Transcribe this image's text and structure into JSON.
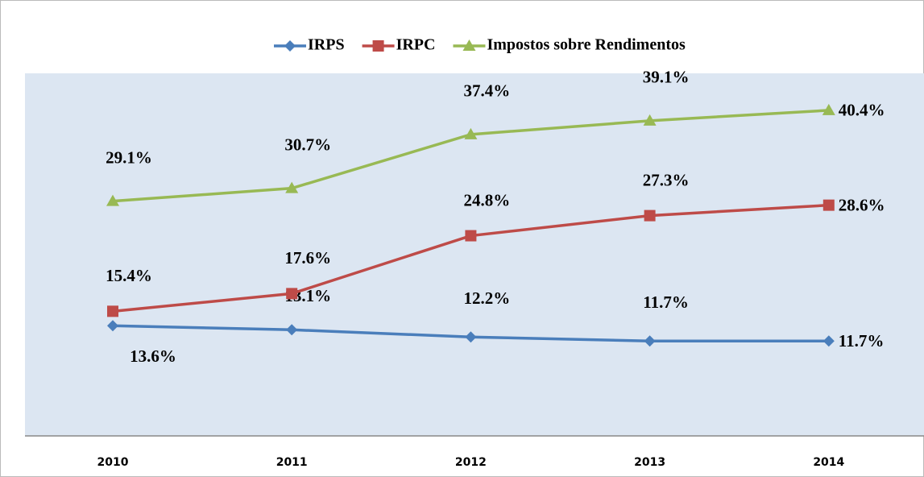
{
  "chart_data": {
    "type": "line",
    "categories": [
      "2010",
      "2011",
      "2012",
      "2013",
      "2014"
    ],
    "series": [
      {
        "name": "IRPS",
        "color": "#4a7ebb",
        "marker": "diamond",
        "values": [
          13.6,
          13.1,
          12.2,
          11.7,
          11.7
        ],
        "value_labels": [
          "13.6%",
          "13.1%",
          "12.2%",
          "11.7%",
          "11.7%"
        ]
      },
      {
        "name": "IRPC",
        "color": "#be4b48",
        "marker": "square",
        "values": [
          15.4,
          17.6,
          24.8,
          27.3,
          28.6
        ],
        "value_labels": [
          "15.4%",
          "17.6%",
          "24.8%",
          "27.3%",
          "28.6%"
        ]
      },
      {
        "name": "Impostos sobre Rendimentos",
        "color": "#98b954",
        "marker": "triangle",
        "values": [
          29.1,
          30.7,
          37.4,
          39.1,
          40.4
        ],
        "value_labels": [
          "29.1%",
          "30.7%",
          "37.4%",
          "39.1%",
          "40.4%"
        ]
      }
    ],
    "ylim": [
      0,
      45
    ],
    "legend": "top"
  }
}
